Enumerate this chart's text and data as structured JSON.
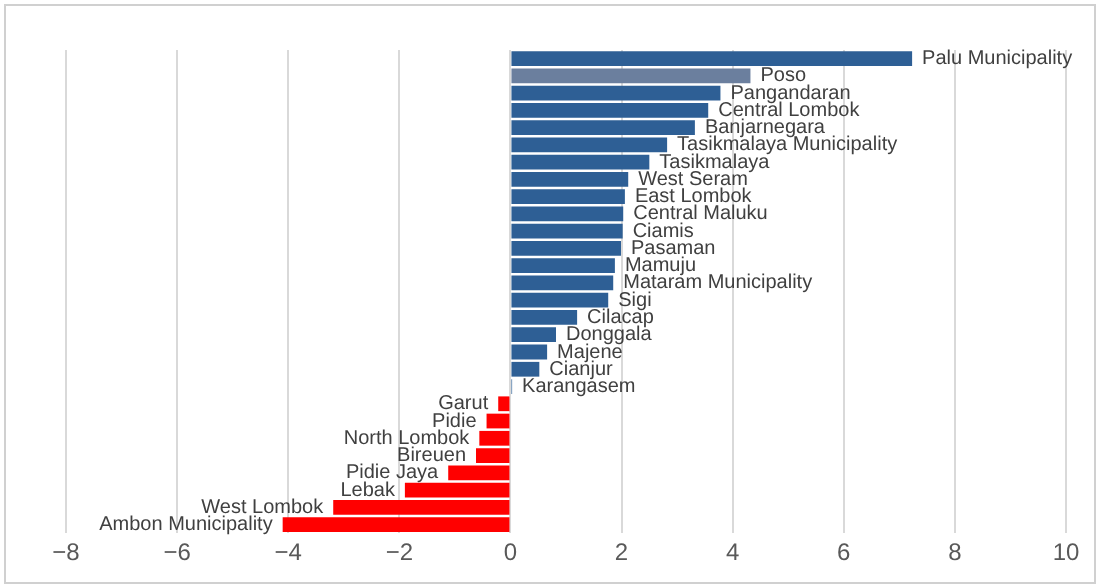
{
  "chart_data": {
    "type": "bar",
    "orientation": "horizontal",
    "categories": [
      "Palu Municipality",
      "Poso",
      "Pangandaran",
      "Central Lombok",
      "Banjarnegara",
      "Tasikmalaya Municipality",
      "Tasikmalaya",
      "West Seram",
      "East Lombok",
      "Central Maluku",
      "Ciamis",
      "Pasaman",
      "Mamuju",
      "Mataram Municipality",
      "Sigi",
      "Cilacap",
      "Donggala",
      "Majene",
      "Cianjur",
      "Karangasem",
      "Garut",
      "Pidie",
      "North Lombok",
      "Bireuen",
      "Pidie Jaya",
      "Lebak",
      "West Lombok",
      "Ambon Municipality"
    ],
    "values": [
      7.23,
      4.32,
      3.78,
      3.56,
      3.32,
      2.82,
      2.5,
      2.12,
      2.06,
      2.03,
      2.02,
      1.99,
      1.88,
      1.85,
      1.76,
      1.2,
      0.82,
      0.66,
      0.52,
      0.03,
      -0.22,
      -0.43,
      -0.56,
      -0.62,
      -1.12,
      -1.9,
      -3.19,
      -4.1
    ],
    "colors": [
      "#2e5f95",
      "#6b7f9e",
      "#2e5f95",
      "#2e5f95",
      "#2e5f95",
      "#2e5f95",
      "#2e5f95",
      "#2e5f95",
      "#2e5f95",
      "#2e5f95",
      "#2e5f95",
      "#2e5f95",
      "#2e5f95",
      "#2e5f95",
      "#2e5f95",
      "#2e5f95",
      "#2e5f95",
      "#2e5f95",
      "#2e5f95",
      "#2e5f95",
      "#ff0000",
      "#ff0000",
      "#ff0000",
      "#ff0000",
      "#ff0000",
      "#ff0000",
      "#ff0000",
      "#ff0000"
    ],
    "xlim": [
      -8,
      10
    ],
    "xticks": [
      -8,
      -6,
      -4,
      -2,
      0,
      2,
      4,
      6,
      8,
      10
    ],
    "grid": "x",
    "tick_labels": "x",
    "legend": false
  }
}
